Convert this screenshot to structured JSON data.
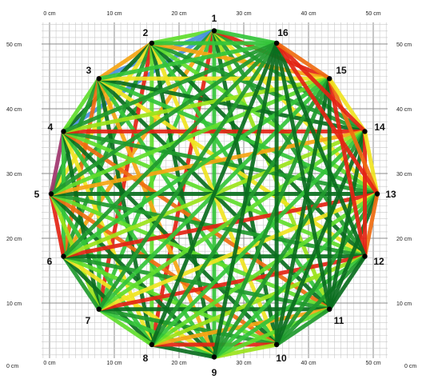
{
  "axis": {
    "top": [
      "0 cm",
      "10 cm",
      "20 cm",
      "30 cm",
      "40 cm",
      "50 cm"
    ],
    "bottom": [
      "0 cm",
      "10 cm",
      "20 cm",
      "30 cm",
      "40 cm",
      "50 cm"
    ],
    "left": [
      "50 cm",
      "40 cm",
      "30 cm",
      "20 cm",
      "10 cm",
      "0 cm"
    ],
    "right": [
      "50 cm",
      "40 cm",
      "30 cm",
      "20 cm",
      "10 cm",
      "0 cm"
    ]
  },
  "nodes": [
    "1",
    "2",
    "3",
    "4",
    "5",
    "6",
    "7",
    "8",
    "9",
    "10",
    "11",
    "12",
    "13",
    "14",
    "15",
    "16"
  ],
  "colors": {
    "grid_major": "#8c8c8c",
    "grid_minor": "#c9c9c9",
    "node": "#000000",
    "palette": [
      "#0a6e1e",
      "#1f9a2e",
      "#33c43a",
      "#5fdd2c",
      "#9be31a",
      "#f0e422",
      "#f5a514",
      "#ef6c11",
      "#e32413",
      "#4a8fe0",
      "#a0356e"
    ]
  }
}
